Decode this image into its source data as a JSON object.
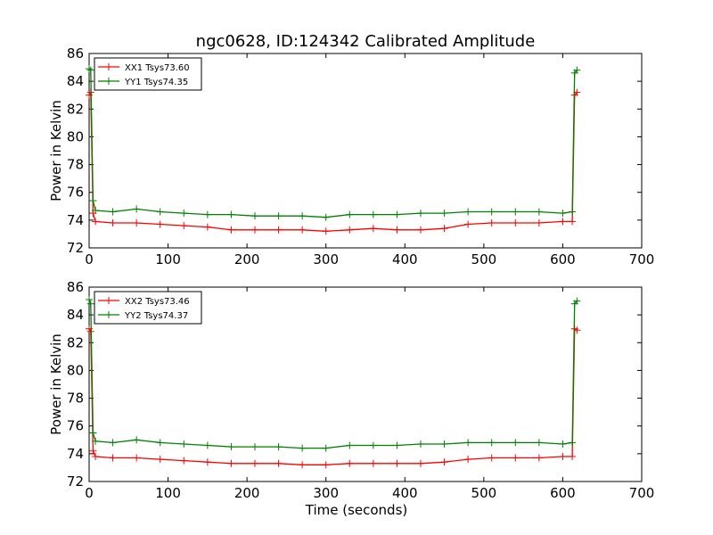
{
  "figure": {
    "title": "ngc0628, ID:124342 Calibrated Amplitude"
  },
  "colors": {
    "red": "#ff0000",
    "green": "#008000",
    "axis": "#000000"
  },
  "chart_data": [
    {
      "type": "line",
      "title": "ngc0628, ID:124342 Calibrated Amplitude",
      "xlabel": "",
      "ylabel": "Power in Kelvin",
      "xlim": [
        0,
        700
      ],
      "ylim": [
        72,
        86
      ],
      "xticks": [
        "0",
        "100",
        "200",
        "300",
        "400",
        "500",
        "600",
        "700"
      ],
      "yticks": [
        "72",
        "74",
        "76",
        "78",
        "80",
        "82",
        "84",
        "86"
      ],
      "legend_position": "top-left",
      "series": [
        {
          "name": "XX1 Tsys73.60",
          "color": "#ff0000",
          "x": [
            0,
            2,
            5,
            8,
            30,
            60,
            90,
            120,
            150,
            180,
            210,
            240,
            270,
            300,
            330,
            360,
            390,
            420,
            450,
            480,
            510,
            540,
            570,
            600,
            612,
            615,
            618
          ],
          "y": [
            83.0,
            83.2,
            74.5,
            73.9,
            73.8,
            73.8,
            73.7,
            73.6,
            73.5,
            73.3,
            73.3,
            73.3,
            73.3,
            73.2,
            73.3,
            73.4,
            73.3,
            73.3,
            73.4,
            73.7,
            73.8,
            73.8,
            73.8,
            73.9,
            73.9,
            83.0,
            83.2
          ]
        },
        {
          "name": "YY1 Tsys74.35",
          "color": "#008000",
          "x": [
            0,
            2,
            5,
            8,
            30,
            60,
            90,
            120,
            150,
            180,
            210,
            240,
            270,
            300,
            330,
            360,
            390,
            420,
            450,
            480,
            510,
            540,
            570,
            600,
            612,
            615,
            618
          ],
          "y": [
            84.9,
            84.8,
            75.4,
            74.7,
            74.6,
            74.8,
            74.6,
            74.5,
            74.4,
            74.4,
            74.3,
            74.3,
            74.3,
            74.2,
            74.4,
            74.4,
            74.4,
            74.5,
            74.5,
            74.6,
            74.6,
            74.6,
            74.6,
            74.5,
            74.6,
            84.6,
            84.8
          ]
        }
      ]
    },
    {
      "type": "line",
      "xlabel": "Time (seconds)",
      "ylabel": "Power in Kelvin",
      "xlim": [
        0,
        700
      ],
      "ylim": [
        72,
        86
      ],
      "xticks": [
        "0",
        "100",
        "200",
        "300",
        "400",
        "500",
        "600",
        "700"
      ],
      "yticks": [
        "72",
        "74",
        "76",
        "78",
        "80",
        "82",
        "84",
        "86"
      ],
      "legend_position": "top-left",
      "series": [
        {
          "name": "XX2 Tsys73.46",
          "color": "#ff0000",
          "x": [
            0,
            2,
            5,
            8,
            30,
            60,
            90,
            120,
            150,
            180,
            210,
            240,
            270,
            300,
            330,
            360,
            390,
            420,
            450,
            480,
            510,
            540,
            570,
            600,
            612,
            615,
            618
          ],
          "y": [
            83.0,
            82.8,
            74.2,
            73.8,
            73.7,
            73.7,
            73.6,
            73.5,
            73.4,
            73.3,
            73.3,
            73.3,
            73.2,
            73.2,
            73.3,
            73.3,
            73.3,
            73.3,
            73.4,
            73.6,
            73.7,
            73.7,
            73.7,
            73.8,
            73.8,
            83.0,
            82.9
          ]
        },
        {
          "name": "YY2 Tsys74.37",
          "color": "#008000",
          "x": [
            0,
            2,
            5,
            8,
            30,
            60,
            90,
            120,
            150,
            180,
            210,
            240,
            270,
            300,
            330,
            360,
            390,
            420,
            450,
            480,
            510,
            540,
            570,
            600,
            612,
            615,
            618
          ],
          "y": [
            85.1,
            84.8,
            75.5,
            74.9,
            74.8,
            75.0,
            74.8,
            74.7,
            74.6,
            74.5,
            74.5,
            74.5,
            74.4,
            74.4,
            74.6,
            74.6,
            74.6,
            74.7,
            74.7,
            74.8,
            74.8,
            74.8,
            74.8,
            74.7,
            74.8,
            84.8,
            85.0
          ]
        }
      ]
    }
  ]
}
